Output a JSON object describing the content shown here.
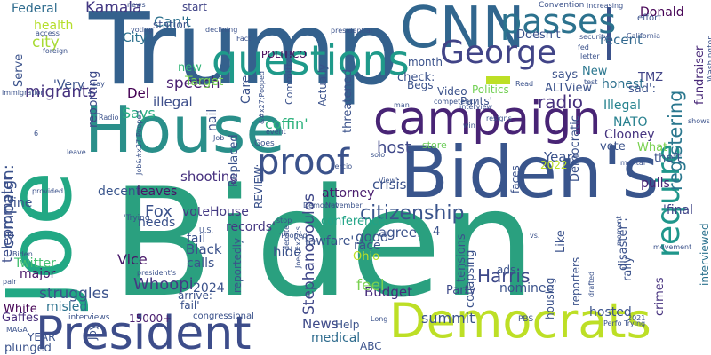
{
  "words": [
    {
      "text": "Biden",
      "color": "#2aa07f"
    },
    {
      "text": "Trump",
      "color": "#34618d"
    },
    {
      "text": "House",
      "color": "#2a8f8a"
    },
    {
      "text": "Joe",
      "color": "#22a884"
    },
    {
      "text": "Biden's",
      "color": "#39558c"
    },
    {
      "text": "President",
      "color": "#3d4d8a"
    },
    {
      "text": "Democrats",
      "color": "#bddf26"
    },
    {
      "text": "campaign",
      "color": "#482475"
    },
    {
      "text": "CNN",
      "color": "#31668e"
    },
    {
      "text": "questions",
      "color": "#1f9a8a"
    },
    {
      "text": "passes",
      "color": "#2c728e"
    },
    {
      "text": "George",
      "color": "#414487"
    },
    {
      "text": "proof",
      "color": "#3b528b"
    },
    {
      "text": "require",
      "color": "#1f968b"
    },
    {
      "text": "citizenship",
      "color": "#3a548c"
    },
    {
      "text": "registering",
      "color": "#2a778e"
    },
    {
      "text": "radio",
      "color": "#46307e"
    },
    {
      "text": "Kamala",
      "color": "#443983"
    },
    {
      "text": "Harris",
      "color": "#3e4989"
    },
    {
      "text": "Stephanopoulos",
      "color": "#3f4788"
    },
    {
      "text": "migrants",
      "color": "#46337f"
    },
    {
      "text": "Fox",
      "color": "#3b528b"
    },
    {
      "text": "Whoopi",
      "color": "#443a83"
    },
    {
      "text": "speech",
      "color": "#481f70"
    },
    {
      "text": "News",
      "color": "#3e4a89"
    },
    {
      "text": "Vice",
      "color": "#481769"
    },
    {
      "text": "host",
      "color": "#3f4889"
    },
    {
      "text": "city",
      "color": "#a8db34"
    },
    {
      "text": "Budget",
      "color": "#472d7b"
    },
    {
      "text": "feel",
      "color": "#7ad151"
    },
    {
      "text": "Ohio",
      "color": "#bddf26"
    },
    {
      "text": "Party",
      "color": "#3e4a89"
    },
    {
      "text": "summit",
      "color": "#3b528b"
    },
    {
      "text": "medical",
      "color": "#2f6c8e"
    },
    {
      "text": "hosted",
      "color": "#3b528b"
    },
    {
      "text": "crimes",
      "color": "#46327e"
    },
    {
      "text": "struggles",
      "color": "#3b528b"
    },
    {
      "text": "Twitter",
      "color": "#44bf70"
    },
    {
      "text": "major",
      "color": "#481668"
    },
    {
      "text": "teleprompter",
      "color": "#3d4d8a"
    },
    {
      "text": "decent",
      "color": "#39558c"
    },
    {
      "text": "leaves",
      "color": "#481467"
    },
    {
      "text": "shooting",
      "color": "#46307e"
    },
    {
      "text": "voteHouse",
      "color": "#443983"
    },
    {
      "text": "records'",
      "color": "#453882"
    },
    {
      "text": "NATO",
      "color": "#27808e"
    },
    {
      "text": "Clooney",
      "color": "#463480"
    },
    {
      "text": "TMZ",
      "color": "#414487"
    },
    {
      "text": "recent",
      "color": "#31688e"
    },
    {
      "text": "Donald",
      "color": "#440154"
    },
    {
      "text": "honest",
      "color": "#2d708e"
    },
    {
      "text": "ALTView",
      "color": "#3b528b"
    },
    {
      "text": "Illegal",
      "color": "#26828e"
    },
    {
      "text": "fundraiser",
      "color": "#482878"
    },
    {
      "text": "interviewed",
      "color": "#2c728e"
    },
    {
      "text": "pulls",
      "color": "#482475"
    },
    {
      "text": "'final",
      "color": "#404588"
    },
    {
      "text": "attorney",
      "color": "#481b6d"
    },
    {
      "text": "conference",
      "color": "#20a386"
    },
    {
      "text": "crisis",
      "color": "#3b528b"
    },
    {
      "text": "White",
      "color": "#440154"
    },
    {
      "text": "misled",
      "color": "#2c728e"
    },
    {
      "text": "Gaffes",
      "color": "#472d7b"
    },
    {
      "text": "YEAR",
      "color": "#3b528b"
    },
    {
      "text": "plunged",
      "color": "#3b528b"
    },
    {
      "text": "15000+",
      "color": "#481c6e"
    },
    {
      "text": "Serve",
      "color": "#3b528b"
    },
    {
      "text": "health",
      "color": "#b5de2b"
    },
    {
      "text": "Federal",
      "color": "#2f6c8e"
    },
    {
      "text": "City",
      "color": "#2d718e"
    },
    {
      "text": "Can't",
      "color": "#2d718e"
    },
    {
      "text": "start",
      "color": "#414487"
    },
    {
      "text": "station",
      "color": "#3b528b"
    },
    {
      "text": "Target",
      "color": "#77d153"
    },
    {
      "text": "new",
      "color": "#35b779"
    },
    {
      "text": "Del",
      "color": "#440154"
    },
    {
      "text": "Says",
      "color": "#27ad81"
    },
    {
      "text": "illegal",
      "color": "#3d4e8a"
    },
    {
      "text": "nail",
      "color": "#3b528b"
    },
    {
      "text": "'Very",
      "color": "#3b528b"
    },
    {
      "text": "reporting",
      "color": "#3e4a89"
    },
    {
      "text": "coffin'",
      "color": "#2db27d"
    },
    {
      "text": "Replaced",
      "color": "#3b528b"
    },
    {
      "text": "Care",
      "color": "#3b528b"
    },
    {
      "text": "POLITICO",
      "color": "#440154"
    },
    {
      "text": "Committee",
      "color": "#3b528b"
    },
    {
      "text": "threatened",
      "color": "#3b528b"
    },
    {
      "text": "Actually",
      "color": "#3b528b"
    },
    {
      "text": "month",
      "color": "#3b528b"
    },
    {
      "text": "Begs",
      "color": "#3b528b"
    },
    {
      "text": "check:",
      "color": "#3b528b"
    },
    {
      "text": "Video",
      "color": "#3b528b"
    },
    {
      "text": "Politics",
      "color": "#73d056"
    },
    {
      "text": "Pants'",
      "color": "#3b528b"
    },
    {
      "text": "Doesn't",
      "color": "#3b528b"
    },
    {
      "text": "says",
      "color": "#3b528b"
    },
    {
      "text": "New",
      "color": "#2a768e"
    },
    {
      "text": "sad':",
      "color": "#3b528b"
    },
    {
      "text": "Years",
      "color": "#3b528b"
    },
    {
      "text": "2022",
      "color": "#bddf26"
    },
    {
      "text": "vote",
      "color": "#3b528b"
    },
    {
      "text": "What",
      "color": "#7ad151"
    },
    {
      "text": "theft",
      "color": "#3b528b"
    },
    {
      "text": "Democratic",
      "color": "#3b528b"
    },
    {
      "text": "faces",
      "color": "#3b528b"
    },
    {
      "text": "store",
      "color": "#6ccd5a"
    },
    {
      "text": "agree.",
      "color": "#3b528b"
    },
    {
      "text": "good",
      "color": "#3b528b"
    },
    {
      "text": "race",
      "color": "#3b528b"
    },
    {
      "text": "4",
      "color": "#3b528b"
    },
    {
      "text": "hide",
      "color": "#3b528b"
    },
    {
      "text": "'lawfare'",
      "color": "#3b528b"
    },
    {
      "text": "tensions",
      "color": "#3b528b"
    },
    {
      "text": "collapsing",
      "color": "#3b528b"
    },
    {
      "text": "ads",
      "color": "#3b528b"
    },
    {
      "text": "nominee",
      "color": "#3b528b"
    },
    {
      "text": "Like",
      "color": "#3b528b"
    },
    {
      "text": "housing",
      "color": "#3b528b"
    },
    {
      "text": "reporters",
      "color": "#3b528b"
    },
    {
      "text": "disaster':",
      "color": "#3b528b"
    },
    {
      "text": "rally",
      "color": "#3b528b"
    },
    {
      "text": "calls",
      "color": "#3b528b"
    },
    {
      "text": "Black",
      "color": "#3b528b"
    },
    {
      "text": "fail",
      "color": "#3b528b"
    },
    {
      "text": "2024",
      "color": "#3b528b"
    },
    {
      "text": "arrive:",
      "color": "#3b528b"
    },
    {
      "text": "fail'",
      "color": "#3b528b"
    },
    {
      "text": "reportedly",
      "color": "#3b528b"
    },
    {
      "text": "needs",
      "color": "#3b528b"
    },
    {
      "text": "REVIEW:",
      "color": "#3b528b"
    },
    {
      "text": "Help",
      "color": "#3b528b"
    },
    {
      "text": "ABC",
      "color": "#3b528b"
    },
    {
      "text": "fine",
      "color": "#3b528b"
    },
    {
      "text": "campaign:",
      "color": "#3b528b"
    },
    {
      "text": "leave",
      "color": "#3b528b"
    },
    {
      "text": "Goes",
      "color": "#3b528b"
    },
    {
      "text": "Radio",
      "color": "#3b528b"
    },
    {
      "text": "Joy",
      "color": "#3b528b"
    },
    {
      "text": "congressional",
      "color": "#3b528b"
    },
    {
      "text": "interviews",
      "color": "#3b528b"
    },
    {
      "text": "PBS",
      "color": "#3b528b"
    },
    {
      "text": "Long",
      "color": "#3b528b"
    },
    {
      "text": "Percio",
      "color": "#3b528b"
    },
    {
      "text": "solo",
      "color": "#3b528b"
    },
    {
      "text": "View':",
      "color": "#3b528b"
    },
    {
      "text": "Democrat",
      "color": "#3b528b"
    },
    {
      "text": "moment",
      "color": "#3b528b"
    },
    {
      "text": "movement",
      "color": "#3b528b"
    },
    {
      "text": "shows",
      "color": "#3b528b"
    },
    {
      "text": "2021",
      "color": "#3b528b"
    },
    {
      "text": "drafted",
      "color": "#3b528b"
    },
    {
      "text": "vs.",
      "color": "#3b528b"
    },
    {
      "text": "stop",
      "color": "#3b528b"
    },
    {
      "text": "debate",
      "color": "#3b528b"
    },
    {
      "text": "provided",
      "color": "#3b528b"
    },
    {
      "text": "Biden.",
      "color": "#3b528b"
    },
    {
      "text": "pair",
      "color": "#3b528b"
    },
    {
      "text": "MAGA",
      "color": "#3b528b"
    },
    {
      "text": "foreign",
      "color": "#3b528b"
    },
    {
      "text": "access",
      "color": "#3b528b"
    },
    {
      "text": "immigration",
      "color": "#3b528b"
    },
    {
      "text": "say",
      "color": "#3b528b"
    },
    {
      "text": "news",
      "color": "#3b528b"
    },
    {
      "text": "voting",
      "color": "#3b528b"
    },
    {
      "text": "declining",
      "color": "#3b528b"
    },
    {
      "text": "Fact",
      "color": "#3b528b"
    },
    {
      "text": "presidential",
      "color": "#3b528b"
    },
    {
      "text": "Convention",
      "color": "#3b528b"
    },
    {
      "text": "increasing",
      "color": "#3b528b"
    },
    {
      "text": "security",
      "color": "#3b528b"
    },
    {
      "text": "fed",
      "color": "#3b528b"
    },
    {
      "text": "letter",
      "color": "#3b528b"
    },
    {
      "text": "effort",
      "color": "#3b528b"
    },
    {
      "text": "California",
      "color": "#3b528b"
    },
    {
      "text": "Washington",
      "color": "#3b528b"
    },
    {
      "text": "man",
      "color": "#3b528b"
    },
    {
      "text": "competency",
      "color": "#3b528b"
    },
    {
      "text": "interview",
      "color": "#3b528b"
    },
    {
      "text": "resigns",
      "color": "#3b528b"
    },
    {
      "text": "Read",
      "color": "#3b528b"
    },
    {
      "text": "test",
      "color": "#3b528b"
    },
    {
      "text": "win",
      "color": "#3b528b"
    },
    {
      "text": "mental",
      "color": "#3b528b"
    },
    {
      "text": "Job",
      "color": "#3b528b"
    },
    {
      "text": "'Trying",
      "color": "#3b528b"
    },
    {
      "text": "U.S.",
      "color": "#3b528b"
    },
    {
      "text": "'Pooped'",
      "color": "#3b528b"
    },
    {
      "text": "president's",
      "color": "#3b528b"
    },
    {
      "text": "November",
      "color": "#3b528b"
    },
    {
      "text": "event",
      "color": "#3b528b"
    },
    {
      "text": "Perfo Trying",
      "color": "#3b528b"
    },
    {
      "text": "Job&#x27;Pooped",
      "color": "#3b528b"
    },
    {
      "text": "&#x27;Pooped",
      "color": "#3b528b"
    },
    {
      "text": "Joe&#x27;s",
      "color": "#3b528b"
    },
    {
      "text": "6",
      "color": "#3b528b"
    }
  ],
  "accent_bar_color": "#bddf26"
}
